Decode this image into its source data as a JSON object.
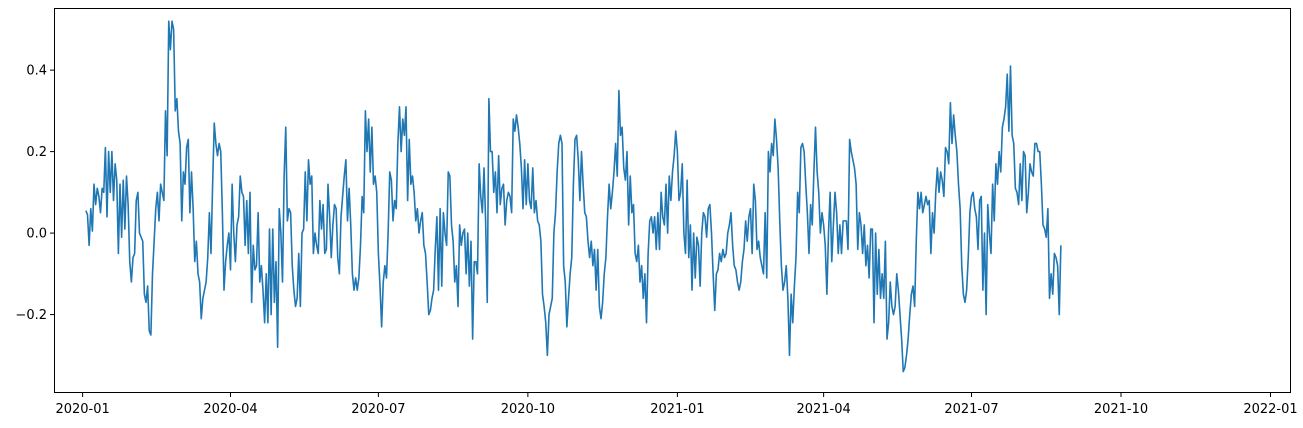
{
  "chart_data": {
    "type": "line",
    "title": "",
    "xlabel": "",
    "ylabel": "",
    "x_axis": "date",
    "x_range": [
      "2019-12-15",
      "2022-01-13"
    ],
    "ylim": [
      -0.39,
      0.55
    ],
    "grid": false,
    "legend": "none",
    "line_color": "#1f77b4",
    "x_ticks": [
      {
        "date": "2020-01-01",
        "label": "2020-01"
      },
      {
        "date": "2020-04-01",
        "label": "2020-04"
      },
      {
        "date": "2020-07-01",
        "label": "2020-07"
      },
      {
        "date": "2020-10-01",
        "label": "2020-10"
      },
      {
        "date": "2021-01-01",
        "label": "2021-01"
      },
      {
        "date": "2021-04-01",
        "label": "2021-04"
      },
      {
        "date": "2021-07-01",
        "label": "2021-07"
      },
      {
        "date": "2021-10-01",
        "label": "2021-10"
      },
      {
        "date": "2022-01-01",
        "label": "2022-01"
      }
    ],
    "y_ticks": [
      {
        "value": -0.2,
        "label": "−0.2"
      },
      {
        "value": 0.0,
        "label": "0.0"
      },
      {
        "value": 0.2,
        "label": "0.2"
      },
      {
        "value": 0.4,
        "label": "0.4"
      }
    ],
    "series": [
      {
        "start_date": "2020-01-03",
        "step_days": 1,
        "values": [
          0.055,
          0.045,
          -0.03,
          0.06,
          0.005,
          0.12,
          0.07,
          0.11,
          0.09,
          0.05,
          0.11,
          0.1,
          0.21,
          0.04,
          0.2,
          0.1,
          0.2,
          0.08,
          0.17,
          0.13,
          -0.05,
          0.12,
          -0.01,
          0.13,
          0.01,
          0.14,
          0.07,
          -0.07,
          -0.12,
          -0.06,
          -0.05,
          0.08,
          0.1,
          0.0,
          -0.01,
          -0.02,
          -0.15,
          -0.17,
          -0.13,
          -0.24,
          -0.25,
          -0.1,
          -0.02,
          0.06,
          0.1,
          0.03,
          0.12,
          0.1,
          0.08,
          0.3,
          0.19,
          0.52,
          0.45,
          0.52,
          0.5,
          0.3,
          0.33,
          0.25,
          0.22,
          0.03,
          0.15,
          0.12,
          0.21,
          0.23,
          0.05,
          0.15,
          0.06,
          -0.07,
          -0.02,
          -0.1,
          -0.12,
          -0.21,
          -0.16,
          -0.14,
          -0.12,
          -0.06,
          0.05,
          -0.05,
          0.12,
          0.27,
          0.22,
          0.19,
          0.22,
          0.2,
          0.05,
          -0.14,
          -0.07,
          -0.03,
          0.0,
          -0.09,
          0.12,
          0.0,
          -0.07,
          0.02,
          0.04,
          0.14,
          0.1,
          0.09,
          -0.03,
          0.08,
          -0.05,
          0.1,
          -0.17,
          -0.03,
          -0.09,
          -0.08,
          0.05,
          -0.12,
          -0.08,
          -0.14,
          -0.22,
          -0.1,
          -0.22,
          0.01,
          -0.2,
          0.01,
          -0.17,
          -0.07,
          -0.28,
          0.06,
          0.0,
          -0.12,
          0.14,
          0.26,
          0.03,
          0.06,
          0.05,
          -0.08,
          -0.14,
          -0.18,
          -0.16,
          -0.05,
          -0.18,
          0.0,
          0.01,
          0.15,
          0.03,
          0.18,
          0.12,
          0.14,
          -0.05,
          0.0,
          -0.03,
          -0.05,
          0.08,
          0.01,
          0.07,
          -0.05,
          -0.04,
          0.12,
          0.04,
          -0.06,
          0.02,
          0.07,
          0.06,
          -0.06,
          -0.1,
          0.04,
          0.09,
          0.14,
          0.18,
          0.03,
          0.11,
          0.02,
          -0.1,
          -0.14,
          -0.11,
          -0.14,
          -0.11,
          -0.03,
          0.09,
          0.05,
          0.3,
          0.2,
          0.28,
          0.15,
          0.26,
          0.12,
          0.14,
          0.1,
          -0.05,
          -0.13,
          -0.23,
          -0.12,
          -0.08,
          -0.11,
          0.0,
          0.15,
          0.13,
          0.03,
          0.08,
          0.06,
          0.22,
          0.31,
          0.2,
          0.28,
          0.24,
          0.31,
          0.08,
          0.23,
          0.12,
          0.14,
          0.1,
          0.03,
          0.06,
          0.0,
          0.03,
          0.05,
          -0.03,
          -0.05,
          -0.12,
          -0.2,
          -0.19,
          -0.16,
          -0.14,
          -0.04,
          0.04,
          -0.14,
          0.06,
          -0.13,
          0.05,
          0.0,
          -0.03,
          0.15,
          0.14,
          0.02,
          -0.02,
          -0.12,
          -0.08,
          -0.18,
          0.02,
          -0.03,
          0.0,
          0.01,
          -0.1,
          0.0,
          -0.13,
          -0.02,
          -0.26,
          -0.07,
          -0.07,
          -0.1,
          0.17,
          0.09,
          0.05,
          0.16,
          0.03,
          -0.17,
          0.33,
          0.2,
          0.2,
          0.1,
          0.15,
          0.05,
          0.19,
          0.07,
          0.11,
          0.12,
          0.02,
          0.08,
          0.1,
          0.09,
          0.05,
          0.28,
          0.25,
          0.29,
          0.26,
          0.22,
          0.16,
          0.06,
          0.18,
          0.07,
          0.17,
          0.08,
          0.06,
          0.16,
          0.05,
          0.08,
          0.03,
          0.02,
          -0.02,
          -0.15,
          -0.18,
          -0.22,
          -0.3,
          -0.2,
          -0.18,
          -0.16,
          0.0,
          0.05,
          0.15,
          0.22,
          0.24,
          0.22,
          -0.08,
          -0.12,
          -0.23,
          -0.16,
          -0.1,
          -0.06,
          0.12,
          0.23,
          0.24,
          0.18,
          0.08,
          0.2,
          0.12,
          0.05,
          0.04,
          -0.02,
          -0.06,
          -0.02,
          -0.08,
          -0.04,
          -0.14,
          -0.04,
          -0.18,
          -0.21,
          -0.17,
          -0.1,
          -0.06,
          0.04,
          0.12,
          0.06,
          0.1,
          0.15,
          0.22,
          0.14,
          0.35,
          0.24,
          0.26,
          0.16,
          0.13,
          0.2,
          0.02,
          0.14,
          0.05,
          0.07,
          -0.05,
          -0.07,
          -0.03,
          -0.12,
          -0.08,
          -0.16,
          -0.1,
          -0.22,
          -0.05,
          0.03,
          0.04,
          0.0,
          0.04,
          -0.04,
          0.05,
          -0.04,
          0.1,
          0.04,
          0.02,
          0.12,
          0.0,
          0.14,
          0.08,
          0.15,
          0.19,
          0.25,
          0.2,
          0.08,
          0.1,
          0.17,
          0.0,
          -0.05,
          0.13,
          -0.06,
          0.02,
          -0.14,
          0.0,
          -0.11,
          -0.01,
          -0.03,
          -0.13,
          0.0,
          0.05,
          0.04,
          -0.01,
          0.06,
          0.07,
          0.0,
          -0.1,
          -0.19,
          -0.1,
          -0.09,
          -0.05,
          -0.07,
          -0.04,
          -0.06,
          -0.05,
          0.0,
          0.02,
          0.05,
          -0.03,
          -0.08,
          -0.09,
          -0.12,
          -0.14,
          -0.12,
          -0.07,
          -0.04,
          0.03,
          -0.02,
          0.04,
          0.06,
          -0.05,
          0.12,
          0.08,
          -0.04,
          -0.02,
          -0.06,
          -0.08,
          -0.1,
          0.05,
          -0.11,
          0.2,
          0.15,
          0.22,
          0.19,
          0.28,
          0.23,
          0.16,
          0.03,
          -0.08,
          -0.14,
          -0.12,
          -0.08,
          -0.16,
          -0.3,
          -0.15,
          -0.22,
          -0.13,
          -0.06,
          0.1,
          0.05,
          0.21,
          0.22,
          0.2,
          0.12,
          0.05,
          -0.05,
          0.07,
          0.02,
          0.15,
          0.26,
          0.15,
          0.1,
          0.0,
          0.05,
          0.02,
          -0.03,
          -0.15,
          0.0,
          0.1,
          -0.07,
          0.02,
          0.1,
          0.05,
          -0.05,
          0.02,
          -0.05,
          0.03,
          0.03,
          0.03,
          -0.04,
          0.23,
          0.2,
          0.18,
          0.16,
          0.12,
          -0.04,
          0.05,
          0.02,
          -0.05,
          0.02,
          -0.08,
          -0.03,
          -0.11,
          0.01,
          0.01,
          -0.22,
          0.0,
          -0.15,
          -0.04,
          -0.16,
          -0.1,
          -0.16,
          -0.02,
          -0.26,
          -0.22,
          -0.12,
          -0.18,
          -0.2,
          -0.18,
          -0.1,
          -0.14,
          -0.2,
          -0.26,
          -0.34,
          -0.33,
          -0.3,
          -0.26,
          -0.2,
          -0.15,
          -0.13,
          -0.18,
          -0.02,
          0.1,
          0.06,
          0.1,
          0.05,
          0.07,
          0.09,
          0.07,
          0.08,
          -0.05,
          0.05,
          0.0,
          0.1,
          0.16,
          0.1,
          0.15,
          0.13,
          0.09,
          0.21,
          0.2,
          0.17,
          0.32,
          0.22,
          0.29,
          0.24,
          0.2,
          0.12,
          0.06,
          -0.08,
          -0.15,
          -0.17,
          -0.14,
          -0.06,
          0.05,
          0.09,
          0.1,
          0.06,
          0.04,
          -0.04,
          0.08,
          0.09,
          -0.14,
          0.0,
          -0.2,
          0.07,
          0.0,
          -0.05,
          0.12,
          0.03,
          0.17,
          0.12,
          0.2,
          0.15,
          0.26,
          0.28,
          0.31,
          0.39,
          0.25,
          0.41,
          0.24,
          0.22,
          0.11,
          0.1,
          0.07,
          0.17,
          0.08,
          0.2,
          0.19,
          0.05,
          0.1,
          0.17,
          0.15,
          0.14,
          0.22,
          0.22,
          0.2,
          0.2,
          0.12,
          0.02,
          0.01,
          -0.01,
          0.06,
          -0.16,
          -0.1,
          -0.15,
          -0.05,
          -0.06,
          -0.08,
          -0.2,
          -0.03
        ]
      }
    ]
  }
}
